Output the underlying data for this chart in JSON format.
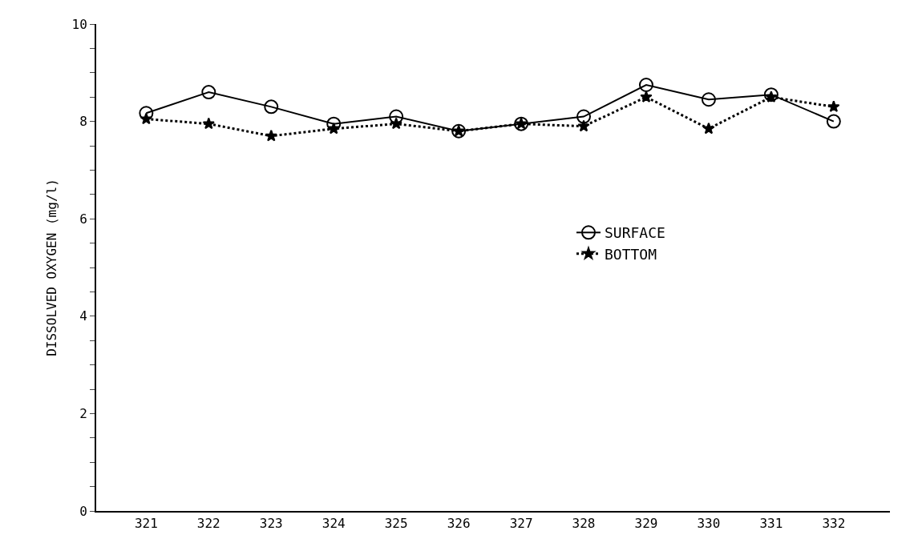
{
  "chart_data": {
    "type": "line",
    "ylabel": "DISSOLVED OXYGEN (mg/l)",
    "categories": [
      "321",
      "322",
      "323",
      "324",
      "325",
      "326",
      "327",
      "328",
      "329",
      "330",
      "331",
      "332"
    ],
    "series": [
      {
        "name": "SURFACE",
        "color": "#000000",
        "marker": "circle",
        "line_style": "solid",
        "values": [
          8.17,
          8.6,
          8.3,
          7.95,
          8.1,
          7.8,
          7.95,
          8.1,
          8.75,
          8.45,
          8.55,
          8.0
        ]
      },
      {
        "name": "BOTTOM",
        "color": "#000000",
        "marker": "star",
        "line_style": "dotted",
        "values": [
          8.05,
          7.95,
          7.7,
          7.85,
          7.95,
          7.8,
          7.95,
          7.9,
          8.5,
          7.85,
          8.5,
          8.3
        ]
      }
    ],
    "ylim": [
      0,
      10
    ],
    "yticks": [
      0,
      {
        "value": 0.5,
        "label": null
      },
      {
        "value": 1,
        "label": null
      },
      {
        "value": 1.5,
        "label": null
      },
      2,
      {
        "value": 2.5,
        "label": null
      },
      {
        "value": 3,
        "label": null
      },
      {
        "value": 3.5,
        "label": null
      },
      4,
      {
        "value": 4.5,
        "label": null
      },
      {
        "value": 5,
        "label": null
      },
      {
        "value": 5.5,
        "label": null
      },
      6,
      {
        "value": 6.5,
        "label": null
      },
      {
        "value": 7,
        "label": null
      },
      {
        "value": 7.5,
        "label": null
      },
      8,
      {
        "value": 8.5,
        "label": null
      },
      {
        "value": 9,
        "label": null
      },
      {
        "value": 9.5,
        "label": null
      },
      10
    ],
    "legend": "right"
  }
}
